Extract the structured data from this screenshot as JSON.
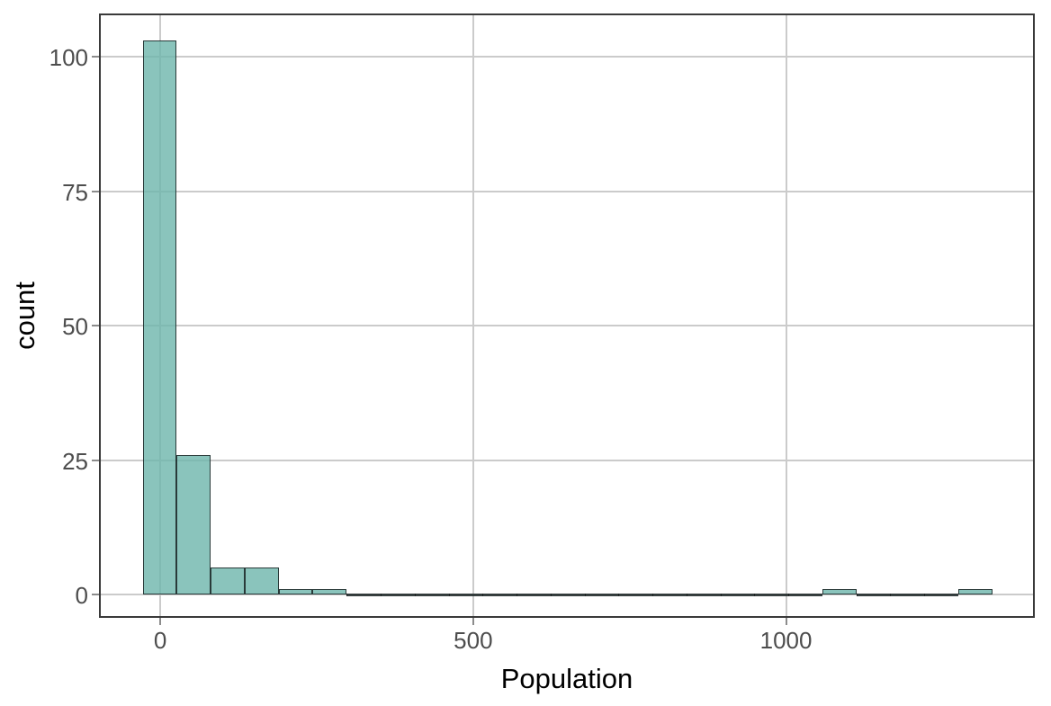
{
  "chart_data": {
    "type": "histogram",
    "title": "",
    "xlabel": "Population",
    "ylabel": "count",
    "xlim": [
      -98,
      1397.5
    ],
    "ylim": [
      -4.3,
      108.1
    ],
    "x_ticks": [
      {
        "value": 0,
        "label": "0"
      },
      {
        "value": 500,
        "label": "500"
      },
      {
        "value": 1000,
        "label": "1000"
      }
    ],
    "y_ticks": [
      {
        "value": 0,
        "label": "0"
      },
      {
        "value": 25,
        "label": "25"
      },
      {
        "value": 50,
        "label": "50"
      },
      {
        "value": 75,
        "label": "75"
      },
      {
        "value": 100,
        "label": "100"
      }
    ],
    "grid": {
      "major": true,
      "minor": false
    },
    "legend": "none",
    "binwidth": 54.3,
    "bins": [
      {
        "x0": -28.0,
        "x1": 26.3,
        "count": 103
      },
      {
        "x0": 26.3,
        "x1": 80.6,
        "count": 26
      },
      {
        "x0": 80.6,
        "x1": 134.9,
        "count": 5
      },
      {
        "x0": 134.9,
        "x1": 189.2,
        "count": 5
      },
      {
        "x0": 189.2,
        "x1": 243.5,
        "count": 1
      },
      {
        "x0": 243.5,
        "x1": 297.8,
        "count": 1
      },
      {
        "x0": 297.8,
        "x1": 352.1,
        "count": 0
      },
      {
        "x0": 352.1,
        "x1": 406.4,
        "count": 0
      },
      {
        "x0": 406.4,
        "x1": 460.7,
        "count": 0
      },
      {
        "x0": 460.7,
        "x1": 515.0,
        "count": 0
      },
      {
        "x0": 515.0,
        "x1": 569.3,
        "count": 0
      },
      {
        "x0": 569.3,
        "x1": 623.6,
        "count": 0
      },
      {
        "x0": 623.6,
        "x1": 677.9,
        "count": 0
      },
      {
        "x0": 677.9,
        "x1": 732.2,
        "count": 0
      },
      {
        "x0": 732.2,
        "x1": 786.5,
        "count": 0
      },
      {
        "x0": 786.5,
        "x1": 840.8,
        "count": 0
      },
      {
        "x0": 840.8,
        "x1": 895.1,
        "count": 0
      },
      {
        "x0": 895.1,
        "x1": 949.4,
        "count": 0
      },
      {
        "x0": 949.4,
        "x1": 1003.7,
        "count": 0
      },
      {
        "x0": 1003.7,
        "x1": 1058.0,
        "count": 0
      },
      {
        "x0": 1058.0,
        "x1": 1112.3,
        "count": 1
      },
      {
        "x0": 1112.3,
        "x1": 1166.6,
        "count": 0
      },
      {
        "x0": 1166.6,
        "x1": 1220.9,
        "count": 0
      },
      {
        "x0": 1220.9,
        "x1": 1275.2,
        "count": 0
      },
      {
        "x0": 1275.2,
        "x1": 1329.5,
        "count": 1
      }
    ],
    "colors": {
      "bar_fill_base": "#6DB5AB",
      "bar_fill_alpha": 0.8,
      "bar_stroke": "rgba(23,34,34,0.85)",
      "grid": "#CBCBCB",
      "panel_border": "#3A3A3A",
      "tick": "#8C8C8C",
      "tick_label": "#4D4D4D",
      "axis_title": "#000000",
      "background": "#FFFFFF"
    }
  }
}
